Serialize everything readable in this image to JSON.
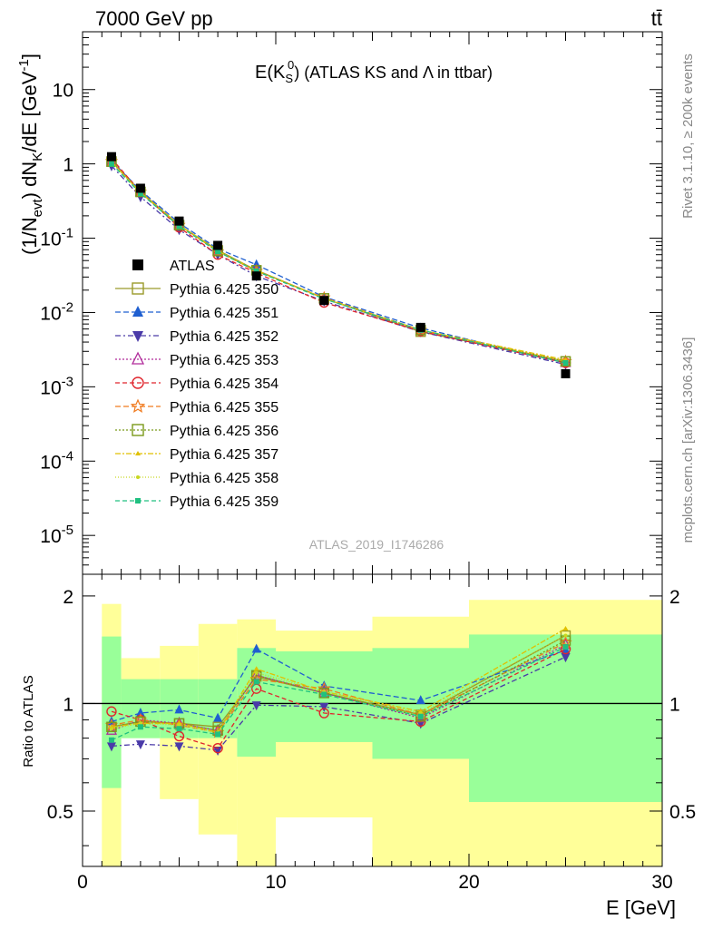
{
  "header": {
    "energy_label": "7000 GeV pp",
    "process_label": "tt̄"
  },
  "side": {
    "rivet_label": "Rivet 3.1.10, ≥ 200k events",
    "mcplots_label": "mcplots.cern.ch [arXiv:1306.3436]"
  },
  "chart_data": [
    {
      "type": "scatter",
      "title_main": "E(K",
      "title_sub": "S",
      "title_sup": "0",
      "title_rest": ") (ATLAS KS and Λ in ttbar)",
      "watermark": "ATLAS_2019_I1746286",
      "ylabel_parts": [
        "(1/N",
        "evt",
        ") dN",
        "K",
        "/dE [GeV",
        "-1",
        "]"
      ],
      "yscale": "log",
      "xlim": [
        0,
        30
      ],
      "ylim": [
        3e-06,
        60
      ],
      "ytick_labels": [
        {
          "base": "10",
          "exp": "-5",
          "value": 1e-05
        },
        {
          "base": "10",
          "exp": "-4",
          "value": 0.0001
        },
        {
          "base": "10",
          "exp": "-3",
          "value": 0.001
        },
        {
          "base": "10",
          "exp": "-2",
          "value": 0.01
        },
        {
          "base": "10",
          "exp": "-1",
          "value": 0.1
        },
        {
          "base": "1",
          "exp": "",
          "value": 1
        },
        {
          "base": "10",
          "exp": "",
          "value": 10
        }
      ],
      "x": [
        1.5,
        3,
        5,
        7,
        9,
        12.5,
        17.5,
        25
      ],
      "series": [
        {
          "name": "ATLAS",
          "color": "#000000",
          "marker": "filled-square",
          "dash": "none",
          "y": [
            1.25,
            0.47,
            0.17,
            0.08,
            0.031,
            0.0145,
            0.0063,
            0.0015
          ]
        },
        {
          "name": "Pythia 6.425 350",
          "color": "#9a9a2a",
          "marker": "open-square",
          "dash": "solid",
          "y": [
            1.08,
            0.42,
            0.15,
            0.069,
            0.037,
            0.0155,
            0.0055,
            0.0022
          ]
        },
        {
          "name": "Pythia 6.425 351",
          "color": "#1f5fd0",
          "marker": "filled-triangle-up",
          "dash": "6,3",
          "y": [
            1.1,
            0.44,
            0.16,
            0.072,
            0.044,
            0.0162,
            0.0062,
            0.0021
          ]
        },
        {
          "name": "Pythia 6.425 352",
          "color": "#4a3aa8",
          "marker": "filled-triangle-down",
          "dash": "6,3,2,3",
          "y": [
            0.94,
            0.36,
            0.13,
            0.06,
            0.031,
            0.0142,
            0.0055,
            0.002
          ]
        },
        {
          "name": "Pythia 6.425 353",
          "color": "#b02a9a",
          "marker": "open-triangle-up",
          "dash": "2,2",
          "y": [
            1.05,
            0.42,
            0.15,
            0.067,
            0.037,
            0.0155,
            0.0057,
            0.0021
          ]
        },
        {
          "name": "Pythia 6.425 354",
          "color": "#e0242c",
          "marker": "open-circle",
          "dash": "5,3",
          "y": [
            1.18,
            0.42,
            0.14,
            0.06,
            0.034,
            0.0136,
            0.0056,
            0.0021
          ]
        },
        {
          "name": "Pythia 6.425 355",
          "color": "#f07a1e",
          "marker": "open-star",
          "dash": "6,3",
          "y": [
            1.08,
            0.42,
            0.15,
            0.066,
            0.036,
            0.0158,
            0.0058,
            0.0022
          ]
        },
        {
          "name": "Pythia 6.425 356",
          "color": "#7a9a1a",
          "marker": "open-square",
          "dash": "2,2",
          "y": [
            1.07,
            0.42,
            0.15,
            0.067,
            0.037,
            0.0155,
            0.0058,
            0.0022
          ]
        },
        {
          "name": "Pythia 6.425 357",
          "color": "#e0c000",
          "marker": "filled-tri-small",
          "dash": "6,2,2,2",
          "y": [
            1.07,
            0.41,
            0.15,
            0.067,
            0.037,
            0.0155,
            0.0058,
            0.0023
          ]
        },
        {
          "name": "Pythia 6.425 358",
          "color": "#c8d820",
          "marker": "filled-dot-small",
          "dash": "1,2",
          "y": [
            1.06,
            0.41,
            0.15,
            0.067,
            0.036,
            0.0154,
            0.0058,
            0.0022
          ]
        },
        {
          "name": "Pythia 6.425 359",
          "color": "#20c080",
          "marker": "filled-square-small",
          "dash": "5,3",
          "y": [
            1.0,
            0.4,
            0.145,
            0.066,
            0.036,
            0.0152,
            0.0058,
            0.0021
          ]
        }
      ]
    },
    {
      "type": "scatter",
      "ylabel": "Ratio to ATLAS",
      "xlabel": "E [GeV]",
      "xlim": [
        0,
        30
      ],
      "ylim": [
        0.35,
        2.3
      ],
      "xtick_labels": [
        "0",
        "10",
        "20",
        "30"
      ],
      "xtick_values": [
        0,
        10,
        20,
        30
      ],
      "ytick_labels": [
        "0.5",
        "1",
        "2"
      ],
      "ytick_values": [
        0.5,
        1,
        2
      ],
      "reference_line": 1,
      "uncertainty_bands": {
        "bins": [
          [
            1,
            2
          ],
          [
            2,
            4
          ],
          [
            4,
            6
          ],
          [
            6,
            8
          ],
          [
            8,
            10
          ],
          [
            10,
            15
          ],
          [
            15,
            20
          ],
          [
            20,
            30
          ]
        ],
        "outer_lo": [
          0.35,
          0.8,
          0.54,
          0.43,
          0.35,
          0.48,
          0.35,
          0.35
        ],
        "outer_hi": [
          1.9,
          1.34,
          1.45,
          1.67,
          1.72,
          1.6,
          1.75,
          1.95
        ],
        "inner_lo": [
          0.58,
          0.8,
          0.8,
          0.8,
          0.71,
          0.78,
          0.7,
          0.53
        ],
        "inner_hi": [
          1.54,
          1.17,
          1.17,
          1.17,
          1.43,
          1.4,
          1.43,
          1.56
        ],
        "outer_color": "#ffff99",
        "inner_color": "#99ff99"
      },
      "x": [
        1.5,
        3,
        5,
        7,
        9,
        12.5,
        17.5,
        25
      ],
      "series": [
        {
          "name": "Pythia 6.425 350",
          "y": [
            0.86,
            0.89,
            0.88,
            0.86,
            1.19,
            1.07,
            0.93,
            1.55
          ]
        },
        {
          "name": "Pythia 6.425 351",
          "y": [
            0.89,
            0.94,
            0.96,
            0.91,
            1.42,
            1.12,
            1.02,
            1.41
          ]
        },
        {
          "name": "Pythia 6.425 352",
          "y": [
            0.76,
            0.77,
            0.76,
            0.74,
            0.99,
            0.98,
            0.88,
            1.35
          ]
        },
        {
          "name": "Pythia 6.425 353",
          "y": [
            0.84,
            0.9,
            0.88,
            0.84,
            1.2,
            1.07,
            0.91,
            1.46
          ]
        },
        {
          "name": "Pythia 6.425 354",
          "y": [
            0.95,
            0.9,
            0.81,
            0.75,
            1.1,
            0.94,
            0.89,
            1.42
          ]
        },
        {
          "name": "Pythia 6.425 355",
          "y": [
            0.87,
            0.9,
            0.87,
            0.83,
            1.17,
            1.1,
            0.93,
            1.48
          ]
        },
        {
          "name": "Pythia 6.425 356",
          "y": [
            0.86,
            0.89,
            0.88,
            0.84,
            1.2,
            1.07,
            0.92,
            1.5
          ]
        },
        {
          "name": "Pythia 6.425 357",
          "y": [
            0.86,
            0.88,
            0.88,
            0.83,
            1.25,
            1.08,
            0.95,
            1.62
          ]
        },
        {
          "name": "Pythia 6.425 358",
          "y": [
            0.85,
            0.88,
            0.87,
            0.83,
            1.22,
            1.08,
            0.94,
            1.55
          ]
        },
        {
          "name": "Pythia 6.425 359",
          "y": [
            0.79,
            0.86,
            0.85,
            0.82,
            1.15,
            1.06,
            0.92,
            1.44
          ]
        }
      ]
    }
  ]
}
